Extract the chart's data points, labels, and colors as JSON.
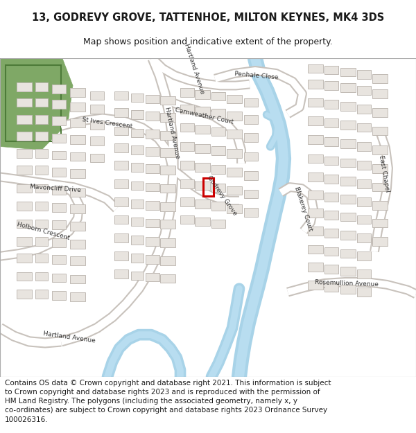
{
  "title": "13, GODREVY GROVE, TATTENHOE, MILTON KEYNES, MK4 3DS",
  "subtitle": "Map shows position and indicative extent of the property.",
  "footer": "Contains OS data © Crown copyright and database right 2021. This information is subject\nto Crown copyright and database rights 2023 and is reproduced with the permission of\nHM Land Registry. The polygons (including the associated geometry, namely x, y\nco-ordinates) are subject to Crown copyright and database rights 2023 Ordnance Survey\n100026316.",
  "title_fontsize": 10.5,
  "subtitle_fontsize": 9,
  "footer_fontsize": 7.5,
  "green_light": "#cdddb5",
  "green_dark": "#7fa866",
  "blue_water": "#a8d3e8",
  "building_color": "#e8e4df",
  "building_edge": "#c0bab4",
  "road_white": "#ffffff",
  "road_edge": "#c8c2bc",
  "highlight_color": "#cc0000",
  "text_color": "#1a1a1a",
  "label_color": "#333333"
}
